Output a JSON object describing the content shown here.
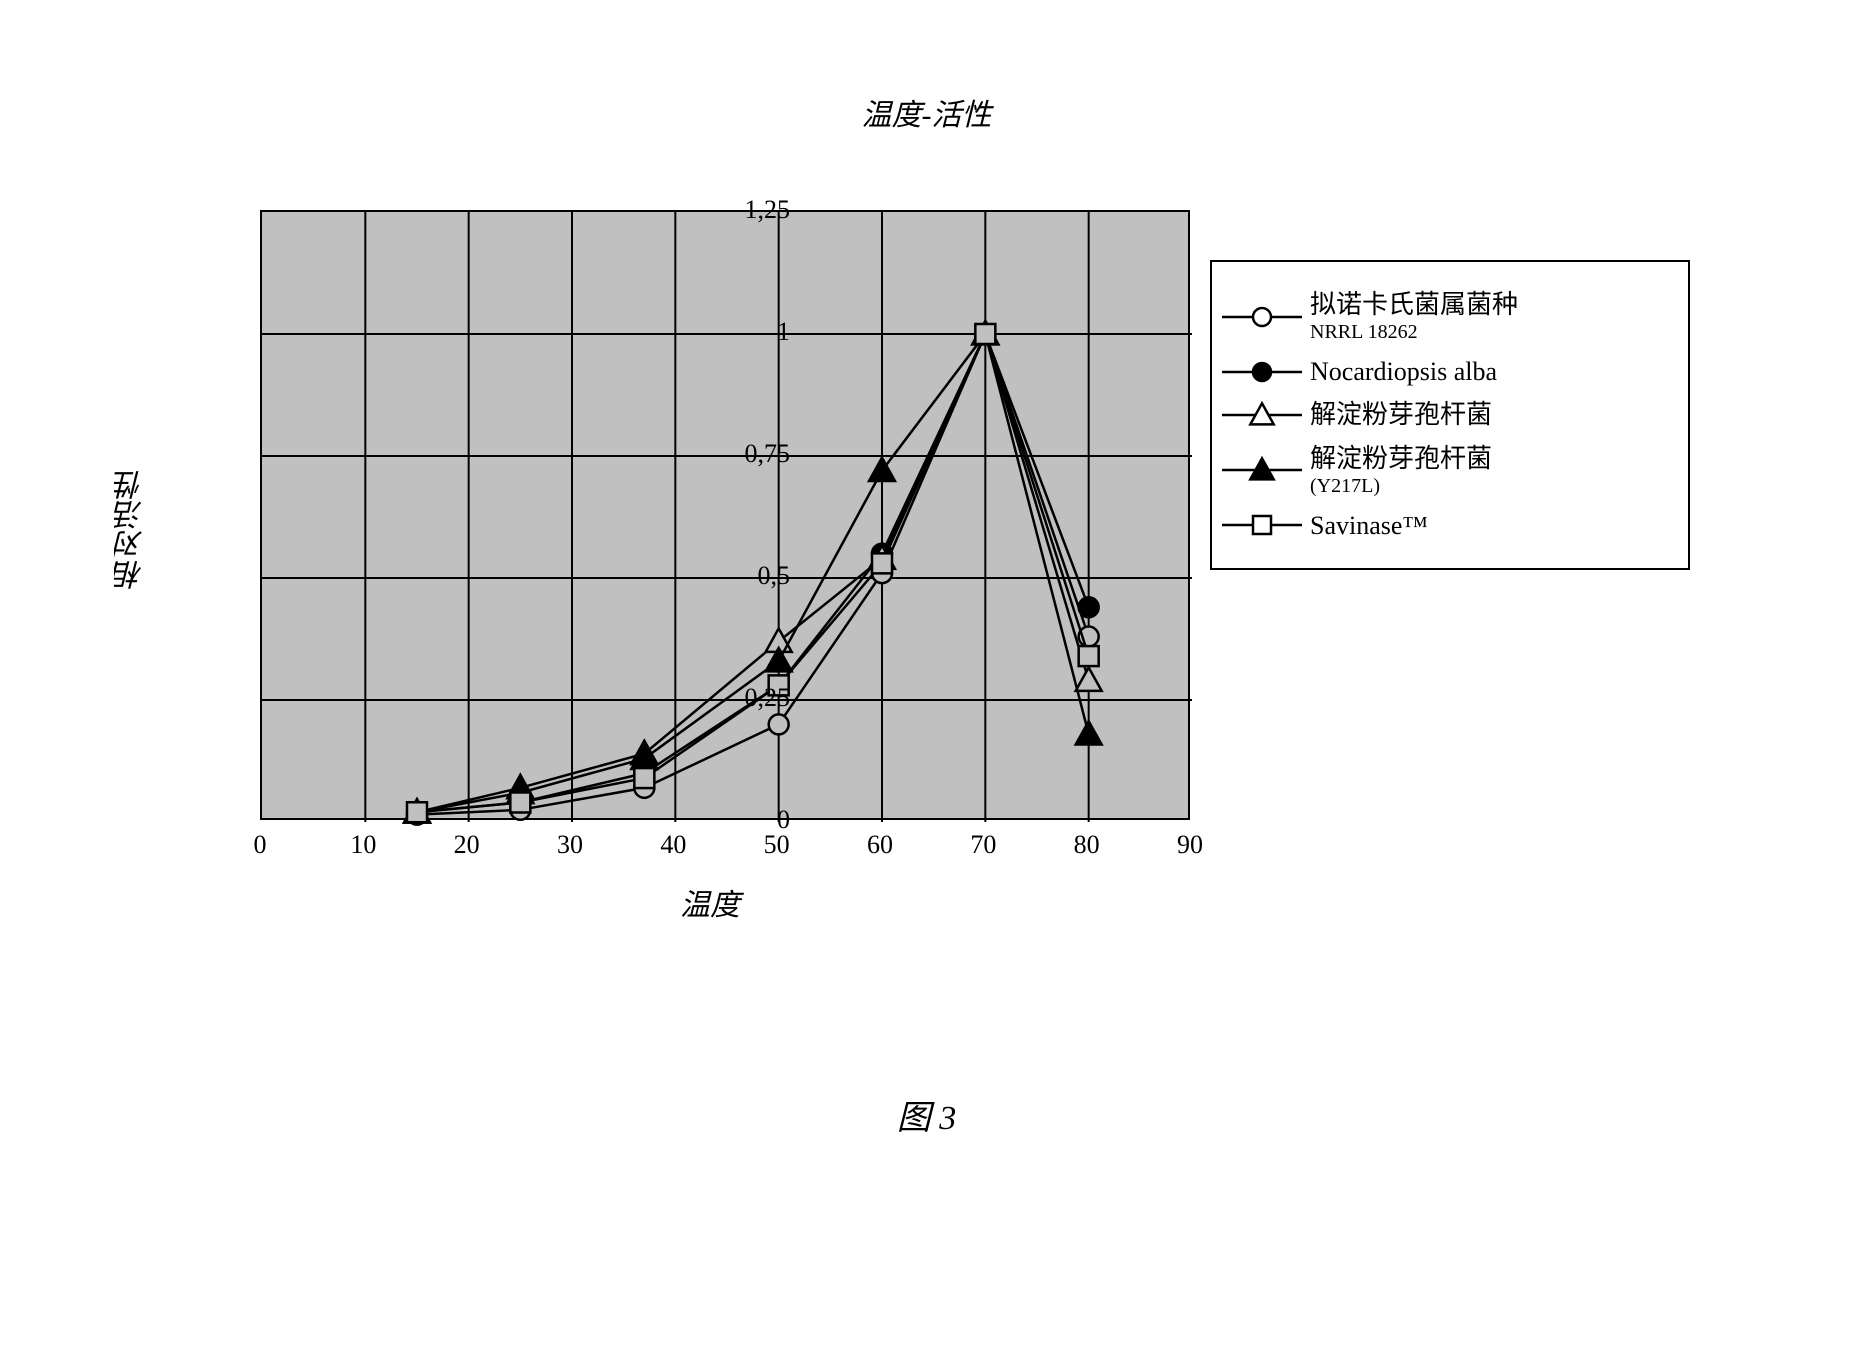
{
  "page_title": "温度-活性",
  "figure_label": "图 3",
  "chart": {
    "type": "line",
    "xlabel": "温度",
    "ylabel": "相对活性",
    "xlim": [
      0,
      90
    ],
    "ylim": [
      0,
      1.25
    ],
    "xticks": [
      0,
      10,
      20,
      30,
      40,
      50,
      60,
      70,
      80,
      90
    ],
    "yticks": [
      0,
      0.25,
      0.5,
      0.75,
      1,
      1.25
    ],
    "ytick_labels": [
      "0",
      "0,25",
      "0,5",
      "0,75",
      "1",
      "1,25"
    ],
    "background_color": "#c0c0c0",
    "grid_color": "#000000",
    "axis_color": "#000000",
    "label_fontsize": 26,
    "axis_title_fontsize": 30,
    "line_width": 2.5,
    "marker_size": 10,
    "series": [
      {
        "name": "拟诺卡氏菌属菌种",
        "sub": "NRRL 18262",
        "marker": "circle-open",
        "color": "#000000",
        "fill": "none",
        "x": [
          15,
          25,
          37,
          50,
          60,
          70,
          80
        ],
        "y": [
          0.015,
          0.025,
          0.07,
          0.2,
          0.51,
          1.0,
          0.38
        ]
      },
      {
        "name": "Nocardiopsis alba",
        "sub": "",
        "marker": "circle-filled",
        "color": "#000000",
        "fill": "#000000",
        "x": [
          15,
          25,
          37,
          50,
          60,
          70,
          80
        ],
        "y": [
          0.02,
          0.04,
          0.1,
          0.28,
          0.55,
          1.0,
          0.44
        ]
      },
      {
        "name": "解淀粉芽孢杆菌",
        "sub": "",
        "marker": "triangle-open",
        "color": "#000000",
        "fill": "none",
        "x": [
          15,
          25,
          37,
          50,
          60,
          70,
          80
        ],
        "y": [
          0.02,
          0.07,
          0.14,
          0.37,
          0.54,
          1.0,
          0.29
        ]
      },
      {
        "name": "解淀粉芽孢杆菌",
        "sub": "(Y217L)",
        "marker": "triangle-filled",
        "color": "#000000",
        "fill": "#000000",
        "x": [
          15,
          25,
          37,
          50,
          60,
          70,
          80
        ],
        "y": [
          0.02,
          0.06,
          0.13,
          0.33,
          0.72,
          1.0,
          0.18
        ]
      },
      {
        "name": "Savinase™",
        "sub": "",
        "marker": "square-open",
        "color": "#000000",
        "fill": "none",
        "x": [
          15,
          25,
          37,
          50,
          60,
          70,
          80
        ],
        "y": [
          0.02,
          0.04,
          0.09,
          0.28,
          0.53,
          1.0,
          0.34
        ]
      }
    ]
  }
}
